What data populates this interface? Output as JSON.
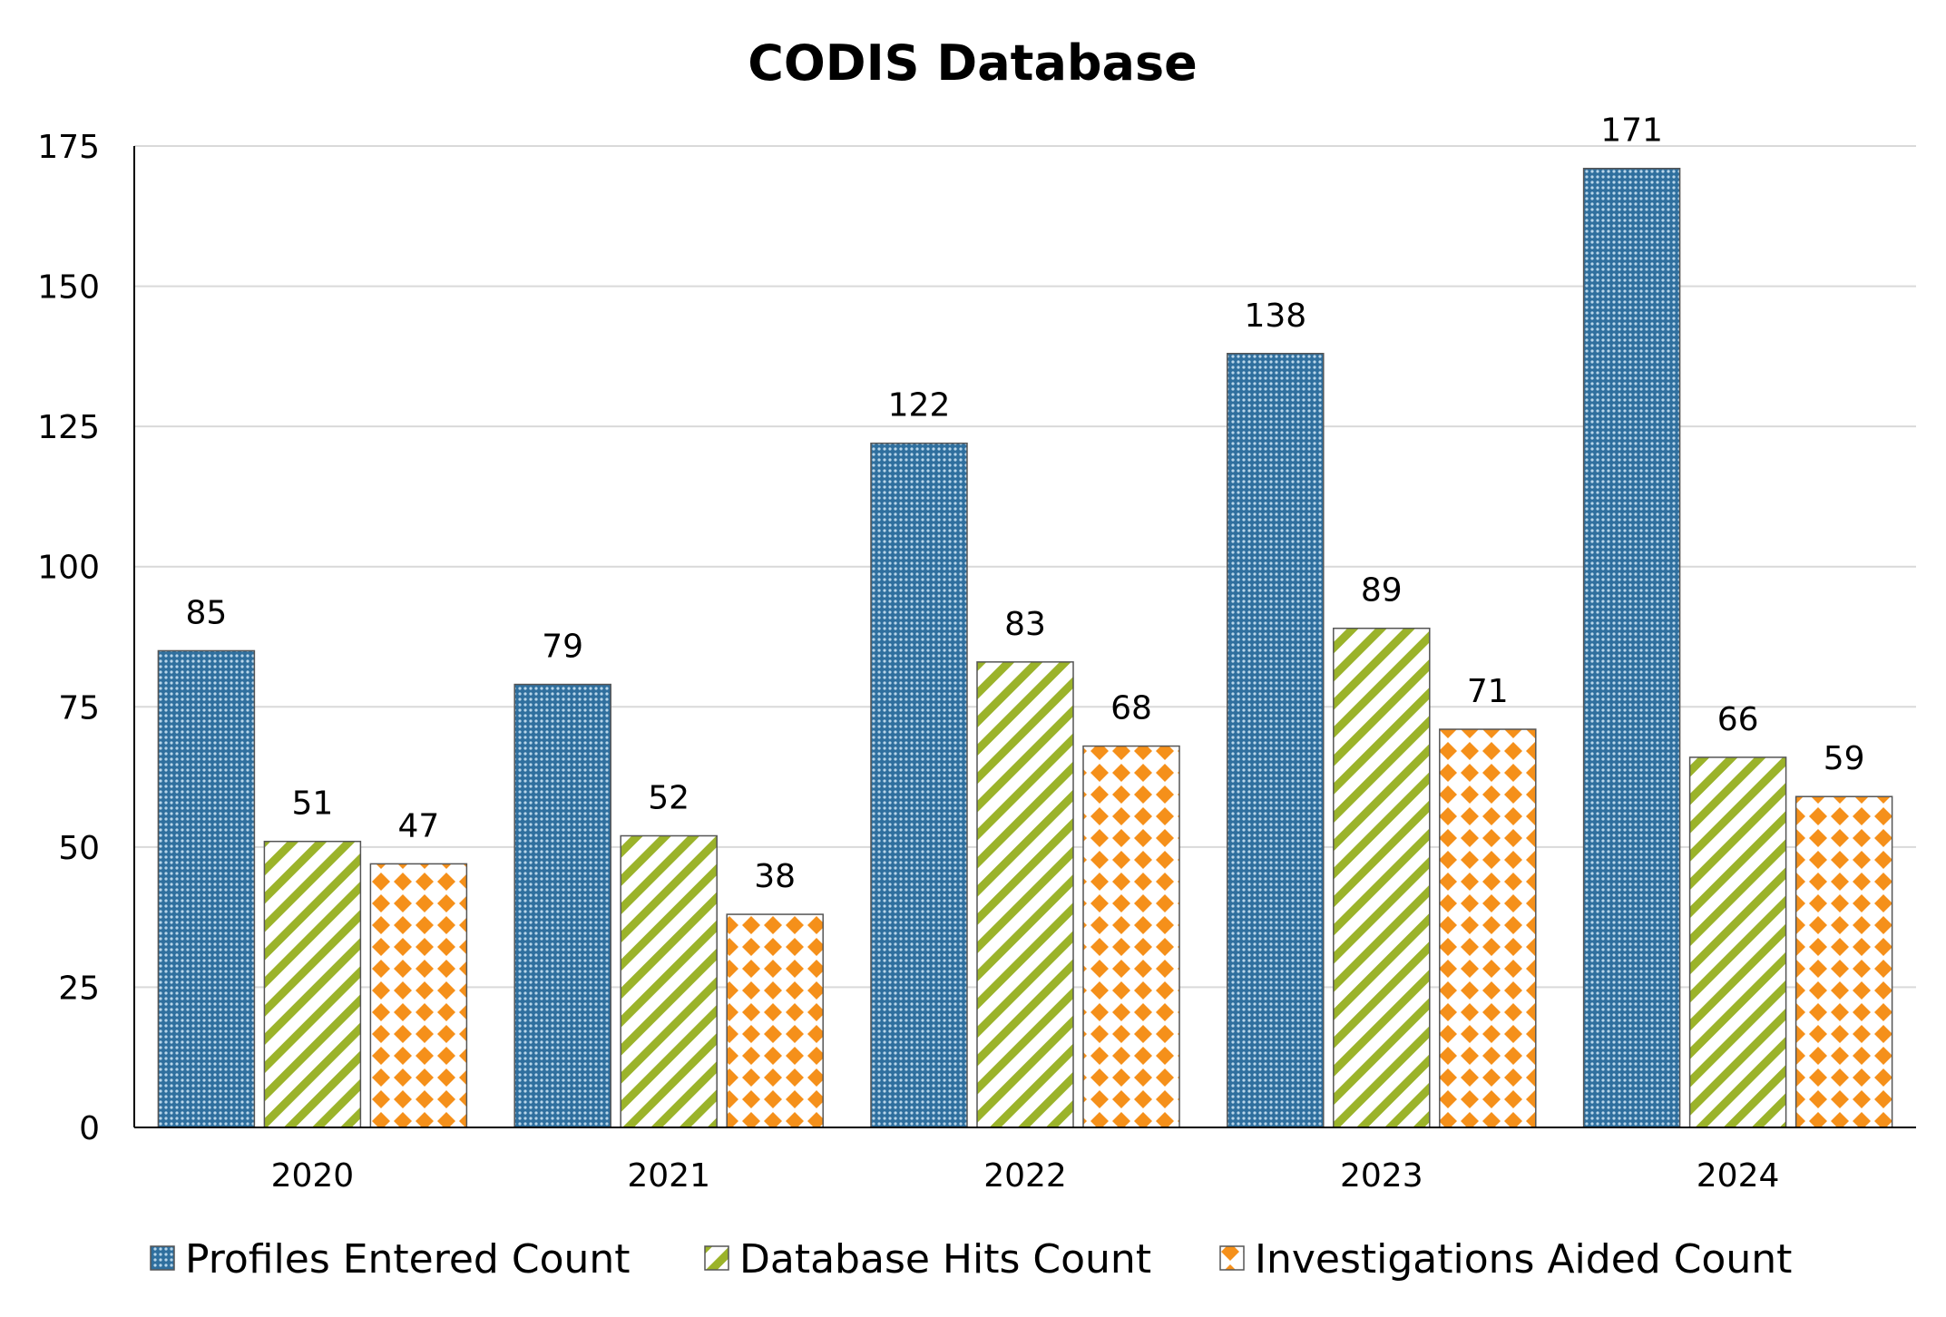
{
  "chart_data": {
    "type": "bar",
    "title": "CODIS Database",
    "xlabel": "",
    "ylabel": "",
    "categories": [
      "2020",
      "2021",
      "2022",
      "2023",
      "2024"
    ],
    "series": [
      {
        "name": "Profiles Entered Count",
        "values": [
          85,
          79,
          122,
          138,
          171
        ],
        "color": "#3a80ad",
        "pattern": "dots"
      },
      {
        "name": "Database Hits Count",
        "values": [
          51,
          52,
          83,
          89,
          66
        ],
        "color": "#9bb32a",
        "pattern": "diagonal-stripes"
      },
      {
        "name": "Investigations Aided Count",
        "values": [
          47,
          38,
          68,
          71,
          59
        ],
        "color": "#f5901a",
        "pattern": "diamonds"
      }
    ],
    "ylim": [
      0,
      175
    ],
    "yticks": [
      0,
      25,
      50,
      75,
      100,
      125,
      150,
      175
    ],
    "grid": true,
    "legend_position": "bottom",
    "data_labels": true
  }
}
